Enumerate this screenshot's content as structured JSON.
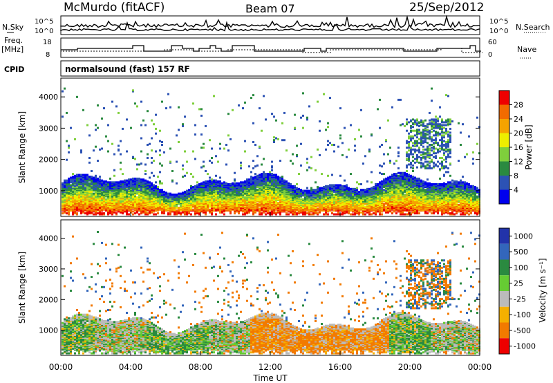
{
  "header": {
    "station": "McMurdo (fitACF)",
    "beam": "Beam 07",
    "date": "25/Sep/2012"
  },
  "side_labels": {
    "nsky": "N.Sky",
    "nsearch": "N.Search",
    "freq": "Freq.",
    "freq_unit": "[MHz]",
    "nave": "Nave",
    "cpid": "CPID"
  },
  "noise_panel": {
    "left_ticks": [
      "10^5",
      "10^0"
    ],
    "right_ticks": [
      "10^5",
      "10^0"
    ]
  },
  "freq_panel": {
    "left_ticks": [
      "18",
      "8"
    ],
    "right_ticks": [
      "60",
      "0"
    ]
  },
  "cpid_text": "normalsound (fast) 157 RF",
  "x_axis": {
    "label": "Time UT",
    "ticks": [
      "00:00",
      "04:00",
      "08:00",
      "12:00",
      "16:00",
      "20:00",
      "00:00"
    ]
  },
  "range_axis": {
    "label": "Slant Range [km]",
    "ticks": [
      "1000",
      "2000",
      "3000",
      "4000"
    ]
  },
  "chart_data": [
    {
      "type": "heatmap",
      "title": "",
      "xlabel": "Time UT",
      "ylabel": "Slant Range [km]",
      "xlim": [
        "00:00",
        "24:00"
      ],
      "ylim": [
        180,
        4600
      ],
      "colorbar": {
        "label": "Power [dB]",
        "ticks": [
          "4",
          "8",
          "12",
          "16",
          "20",
          "24",
          "28"
        ],
        "range": [
          0,
          32
        ],
        "colors": [
          "#0000ee",
          "#2c52b4",
          "#2a8a40",
          "#7fcf3c",
          "#eeee00",
          "#f5a300",
          "#f26b00",
          "#ee0000"
        ]
      },
      "description_values": {
        "main_band_km": [
          300,
          1500
        ],
        "peak_power_dB": 30
      }
    },
    {
      "type": "heatmap",
      "title": "",
      "xlabel": "Time UT",
      "ylabel": "Slant Range [km]",
      "xlim": [
        "00:00",
        "24:00"
      ],
      "ylim": [
        180,
        4600
      ],
      "colorbar": {
        "label": "Velocity [m s⁻¹]",
        "ticks": [
          "1000",
          "500",
          "100",
          "25",
          "-25",
          "-100",
          "-500",
          "-1000"
        ],
        "colors": [
          "#2233aa",
          "#3366bb",
          "#2a8a40",
          "#66cc33",
          "#bbbbbb",
          "#f5b000",
          "#f27a00",
          "#ee0000"
        ]
      }
    }
  ],
  "colors": {
    "power": [
      "#0000ee",
      "#2c52b4",
      "#2a8a40",
      "#7fcf3c",
      "#eeee00",
      "#f5a300",
      "#f26b00",
      "#ee0000"
    ],
    "velocity": [
      "#ee0000",
      "#f27a00",
      "#f5b000",
      "#bbbbbb",
      "#66cc33",
      "#2a8a40",
      "#3366bb",
      "#2233aa"
    ]
  }
}
